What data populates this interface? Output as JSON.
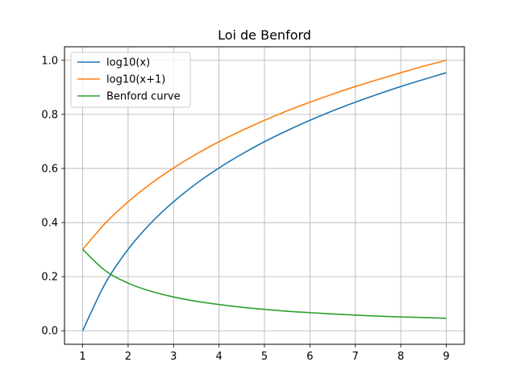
{
  "chart_data": {
    "type": "line",
    "title": "Loi de Benford",
    "xlabel": "",
    "ylabel": "",
    "xlim": [
      0.6,
      9.4
    ],
    "ylim": [
      -0.05,
      1.05
    ],
    "x_ticks": [
      1,
      2,
      3,
      4,
      5,
      6,
      7,
      8,
      9
    ],
    "y_ticks": [
      0.0,
      0.2,
      0.4,
      0.6,
      0.8,
      1.0
    ],
    "y_tick_labels": [
      "0.0",
      "0.2",
      "0.4",
      "0.6",
      "0.8",
      "1.0"
    ],
    "grid": true,
    "legend_position": "upper-left",
    "series": [
      {
        "name": "log10(x)",
        "color": "#1f77b4",
        "x": [
          1,
          1.5,
          2,
          2.5,
          3,
          3.5,
          4,
          4.5,
          5,
          5.5,
          6,
          6.5,
          7,
          7.5,
          8,
          8.5,
          9
        ],
        "values": [
          0.0,
          0.176,
          0.301,
          0.398,
          0.477,
          0.544,
          0.602,
          0.653,
          0.699,
          0.74,
          0.778,
          0.813,
          0.845,
          0.875,
          0.903,
          0.929,
          0.954
        ]
      },
      {
        "name": "log10(x+1)",
        "color": "#ff7f0e",
        "x": [
          1,
          1.5,
          2,
          2.5,
          3,
          3.5,
          4,
          4.5,
          5,
          5.5,
          6,
          6.5,
          7,
          7.5,
          8,
          8.5,
          9
        ],
        "values": [
          0.301,
          0.398,
          0.477,
          0.544,
          0.602,
          0.653,
          0.699,
          0.74,
          0.778,
          0.813,
          0.845,
          0.875,
          0.903,
          0.929,
          0.954,
          0.978,
          1.0
        ]
      },
      {
        "name": "Benford curve",
        "color": "#2ca02c",
        "x": [
          1,
          1.5,
          2,
          2.5,
          3,
          3.5,
          4,
          4.5,
          5,
          5.5,
          6,
          6.5,
          7,
          7.5,
          8,
          8.5,
          9
        ],
        "values": [
          0.301,
          0.222,
          0.176,
          0.146,
          0.125,
          0.109,
          0.097,
          0.087,
          0.079,
          0.072,
          0.067,
          0.062,
          0.058,
          0.054,
          0.051,
          0.049,
          0.046
        ]
      }
    ]
  }
}
